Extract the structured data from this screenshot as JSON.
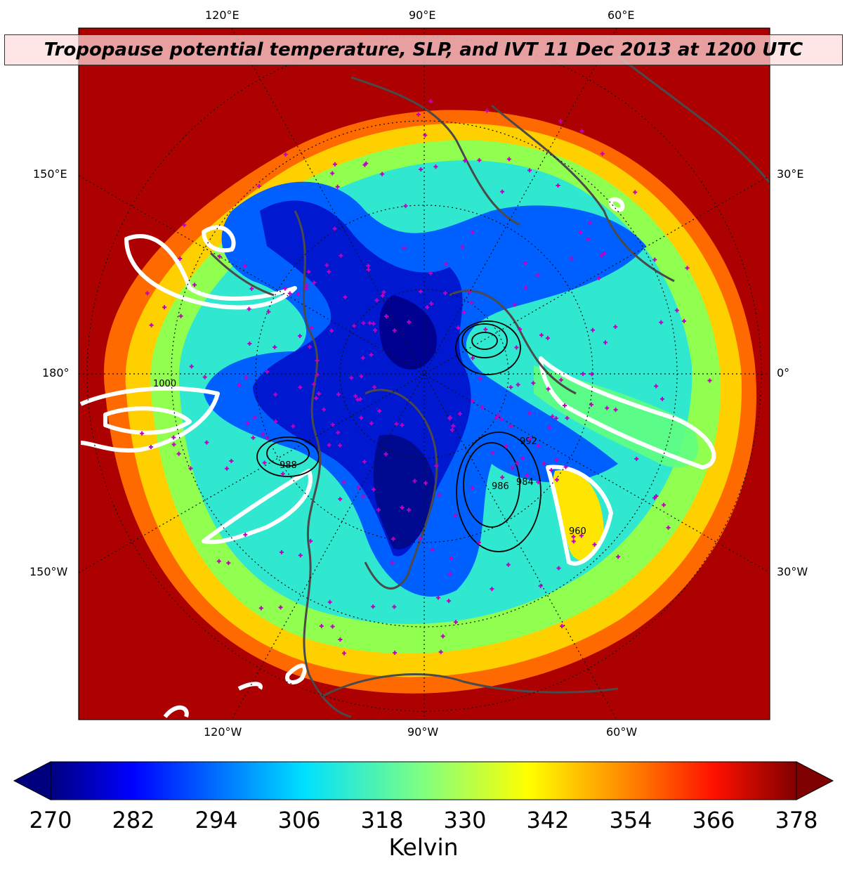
{
  "title": "Tropopause potential temperature, SLP, and IVT 11 Dec 2013 at 1200 UTC",
  "longitude_labels": {
    "top": [
      "120°E",
      "90°E",
      "60°E"
    ],
    "left": [
      "150°E",
      "180°",
      "150°W"
    ],
    "right": [
      "30°E",
      "0°",
      "30°W"
    ],
    "bottom": [
      "120°W",
      "90°W",
      "60°W"
    ]
  },
  "slp_contour_labels": [
    "1000",
    "988",
    "984",
    "960",
    "992",
    "986"
  ],
  "colorbar": {
    "ticks": [
      "270",
      "282",
      "294",
      "306",
      "318",
      "330",
      "342",
      "354",
      "366",
      "378"
    ],
    "min": 270,
    "max": 378,
    "label": "Kelvin",
    "extend": "both",
    "colormap": [
      "#00007f",
      "#0000ff",
      "#007fff",
      "#00ffff",
      "#7fff7f",
      "#ffff00",
      "#ff7f00",
      "#ff0000",
      "#7f0000"
    ]
  },
  "colors": {
    "land_outline": "#4a4a4a",
    "station_marker": "#c000c0",
    "ivt_contour": "#ffffff",
    "slp_contour": "#000000"
  }
}
